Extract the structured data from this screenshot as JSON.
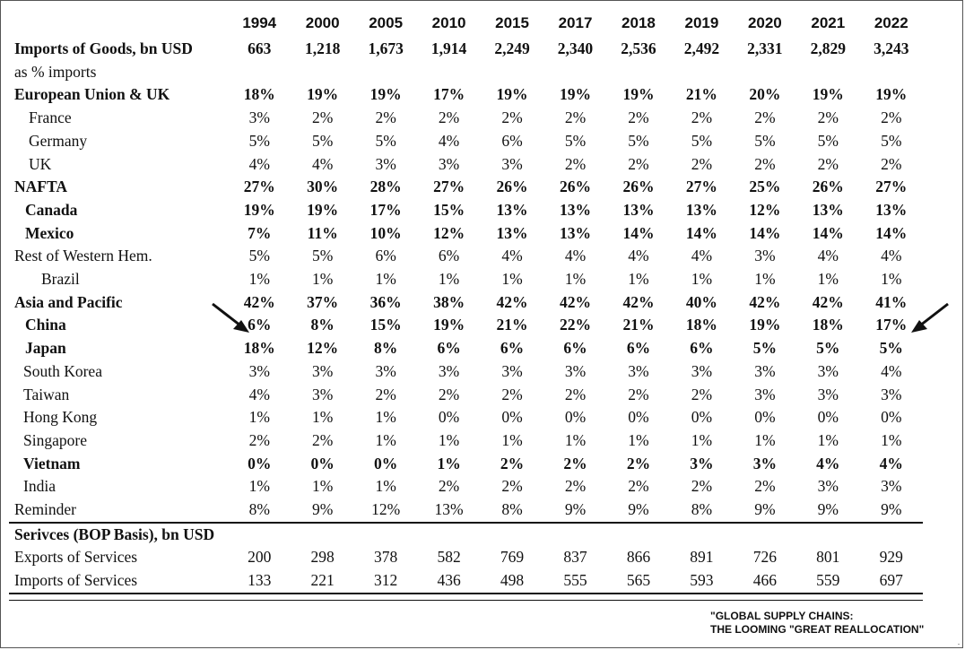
{
  "years": [
    "1994",
    "2000",
    "2005",
    "2010",
    "2015",
    "2017",
    "2018",
    "2019",
    "2020",
    "2021",
    "2022"
  ],
  "rows": [
    {
      "label": "Imports of Goods, bn USD",
      "values": [
        "663",
        "1,218",
        "1,673",
        "1,914",
        "2,249",
        "2,340",
        "2,536",
        "2,492",
        "2,331",
        "2,829",
        "3,243"
      ]
    },
    {
      "label": "as % imports",
      "values": []
    },
    {
      "label": "European Union & UK",
      "values": [
        "18%",
        "19%",
        "19%",
        "17%",
        "19%",
        "19%",
        "19%",
        "21%",
        "20%",
        "19%",
        "19%"
      ]
    },
    {
      "label": "France",
      "values": [
        "3%",
        "2%",
        "2%",
        "2%",
        "2%",
        "2%",
        "2%",
        "2%",
        "2%",
        "2%",
        "2%"
      ]
    },
    {
      "label": "Germany",
      "values": [
        "5%",
        "5%",
        "5%",
        "4%",
        "6%",
        "5%",
        "5%",
        "5%",
        "5%",
        "5%",
        "5%"
      ]
    },
    {
      "label": "UK",
      "values": [
        "4%",
        "4%",
        "3%",
        "3%",
        "3%",
        "2%",
        "2%",
        "2%",
        "2%",
        "2%",
        "2%"
      ]
    },
    {
      "label": "NAFTA",
      "values": [
        "27%",
        "30%",
        "28%",
        "27%",
        "26%",
        "26%",
        "26%",
        "27%",
        "25%",
        "26%",
        "27%"
      ]
    },
    {
      "label": "Canada",
      "values": [
        "19%",
        "19%",
        "17%",
        "15%",
        "13%",
        "13%",
        "13%",
        "13%",
        "12%",
        "13%",
        "13%"
      ]
    },
    {
      "label": "Mexico",
      "values": [
        "7%",
        "11%",
        "10%",
        "12%",
        "13%",
        "13%",
        "14%",
        "14%",
        "14%",
        "14%",
        "14%"
      ]
    },
    {
      "label": "Rest of Western Hem.",
      "values": [
        "5%",
        "5%",
        "6%",
        "6%",
        "4%",
        "4%",
        "4%",
        "4%",
        "3%",
        "4%",
        "4%"
      ]
    },
    {
      "label": "Brazil",
      "values": [
        "1%",
        "1%",
        "1%",
        "1%",
        "1%",
        "1%",
        "1%",
        "1%",
        "1%",
        "1%",
        "1%"
      ]
    },
    {
      "label": "Asia and Pacific",
      "values": [
        "42%",
        "37%",
        "36%",
        "38%",
        "42%",
        "42%",
        "42%",
        "40%",
        "42%",
        "42%",
        "41%"
      ]
    },
    {
      "label": "China",
      "values": [
        "6%",
        "8%",
        "15%",
        "19%",
        "21%",
        "22%",
        "21%",
        "18%",
        "19%",
        "18%",
        "17%"
      ]
    },
    {
      "label": "Japan",
      "values": [
        "18%",
        "12%",
        "8%",
        "6%",
        "6%",
        "6%",
        "6%",
        "6%",
        "5%",
        "5%",
        "5%"
      ]
    },
    {
      "label": "South Korea",
      "values": [
        "3%",
        "3%",
        "3%",
        "3%",
        "3%",
        "3%",
        "3%",
        "3%",
        "3%",
        "3%",
        "4%"
      ]
    },
    {
      "label": "Taiwan",
      "values": [
        "4%",
        "3%",
        "2%",
        "2%",
        "2%",
        "2%",
        "2%",
        "2%",
        "3%",
        "3%",
        "3%"
      ]
    },
    {
      "label": "Hong Kong",
      "values": [
        "1%",
        "1%",
        "1%",
        "0%",
        "0%",
        "0%",
        "0%",
        "0%",
        "0%",
        "0%",
        "0%"
      ]
    },
    {
      "label": "Singapore",
      "values": [
        "2%",
        "2%",
        "1%",
        "1%",
        "1%",
        "1%",
        "1%",
        "1%",
        "1%",
        "1%",
        "1%"
      ]
    },
    {
      "label": "Vietnam",
      "values": [
        "0%",
        "0%",
        "0%",
        "1%",
        "2%",
        "2%",
        "2%",
        "3%",
        "3%",
        "4%",
        "4%"
      ]
    },
    {
      "label": "India",
      "values": [
        "1%",
        "1%",
        "1%",
        "2%",
        "2%",
        "2%",
        "2%",
        "2%",
        "2%",
        "3%",
        "3%"
      ]
    },
    {
      "label": "Reminder",
      "values": [
        "8%",
        "9%",
        "12%",
        "13%",
        "8%",
        "9%",
        "9%",
        "8%",
        "9%",
        "9%",
        "9%"
      ]
    },
    {
      "label": "Serivces (BOP Basis), bn USD",
      "values": []
    },
    {
      "label": "Exports of Services",
      "values": [
        "200",
        "298",
        "378",
        "582",
        "769",
        "837",
        "866",
        "891",
        "726",
        "801",
        "929"
      ]
    },
    {
      "label": "Imports of Services",
      "values": [
        "133",
        "221",
        "312",
        "436",
        "498",
        "555",
        "565",
        "593",
        "466",
        "559",
        "697"
      ]
    }
  ],
  "note": {
    "line1": "\"GLOBAL SUPPLY CHAINS:",
    "line2": "THE LOOMING \"GREAT REALLOCATION\""
  },
  "corner_mark": ".",
  "colors": {
    "text": "#111111",
    "rules": "#111111",
    "background": "#ffffff"
  },
  "icons": [
    "arrow-left-pointer-icon",
    "arrow-right-pointer-icon"
  ]
}
